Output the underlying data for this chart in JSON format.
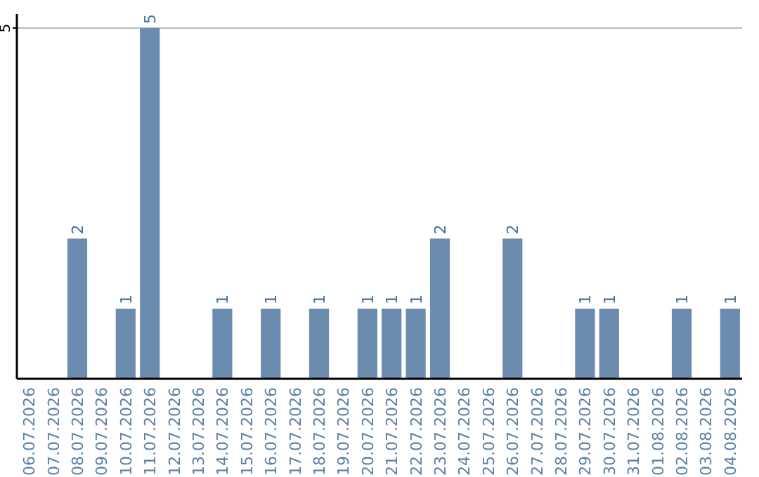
{
  "chart_data": {
    "type": "bar",
    "categories": [
      "06.07.2026",
      "07.07.2026",
      "08.07.2026",
      "09.07.2026",
      "10.07.2026",
      "11.07.2026",
      "12.07.2026",
      "13.07.2026",
      "14.07.2026",
      "15.07.2026",
      "16.07.2026",
      "17.07.2026",
      "18.07.2026",
      "19.07.2026",
      "20.07.2026",
      "21.07.2026",
      "22.07.2026",
      "23.07.2026",
      "24.07.2026",
      "25.07.2026",
      "26.07.2026",
      "27.07.2026",
      "28.07.2026",
      "29.07.2026",
      "30.07.2026",
      "31.07.2026",
      "01.08.2026",
      "02.08.2026",
      "03.08.2026",
      "04.08.2026"
    ],
    "values": [
      0,
      0,
      2,
      0,
      1,
      5,
      0,
      0,
      1,
      0,
      1,
      0,
      1,
      0,
      1,
      1,
      1,
      2,
      0,
      0,
      2,
      0,
      0,
      1,
      1,
      0,
      0,
      1,
      0,
      1
    ],
    "value_labels": [
      null,
      null,
      "2",
      null,
      "1",
      "5",
      null,
      null,
      "1",
      null,
      "1",
      null,
      "1",
      null,
      "1",
      "1",
      "1",
      "2",
      null,
      null,
      "2",
      null,
      null,
      "1",
      "1",
      null,
      null,
      "1",
      null,
      "1"
    ],
    "color": "#6b8cae",
    "ylim": [
      0,
      5.2
    ],
    "yticks": [
      5
    ],
    "grid": "y"
  }
}
